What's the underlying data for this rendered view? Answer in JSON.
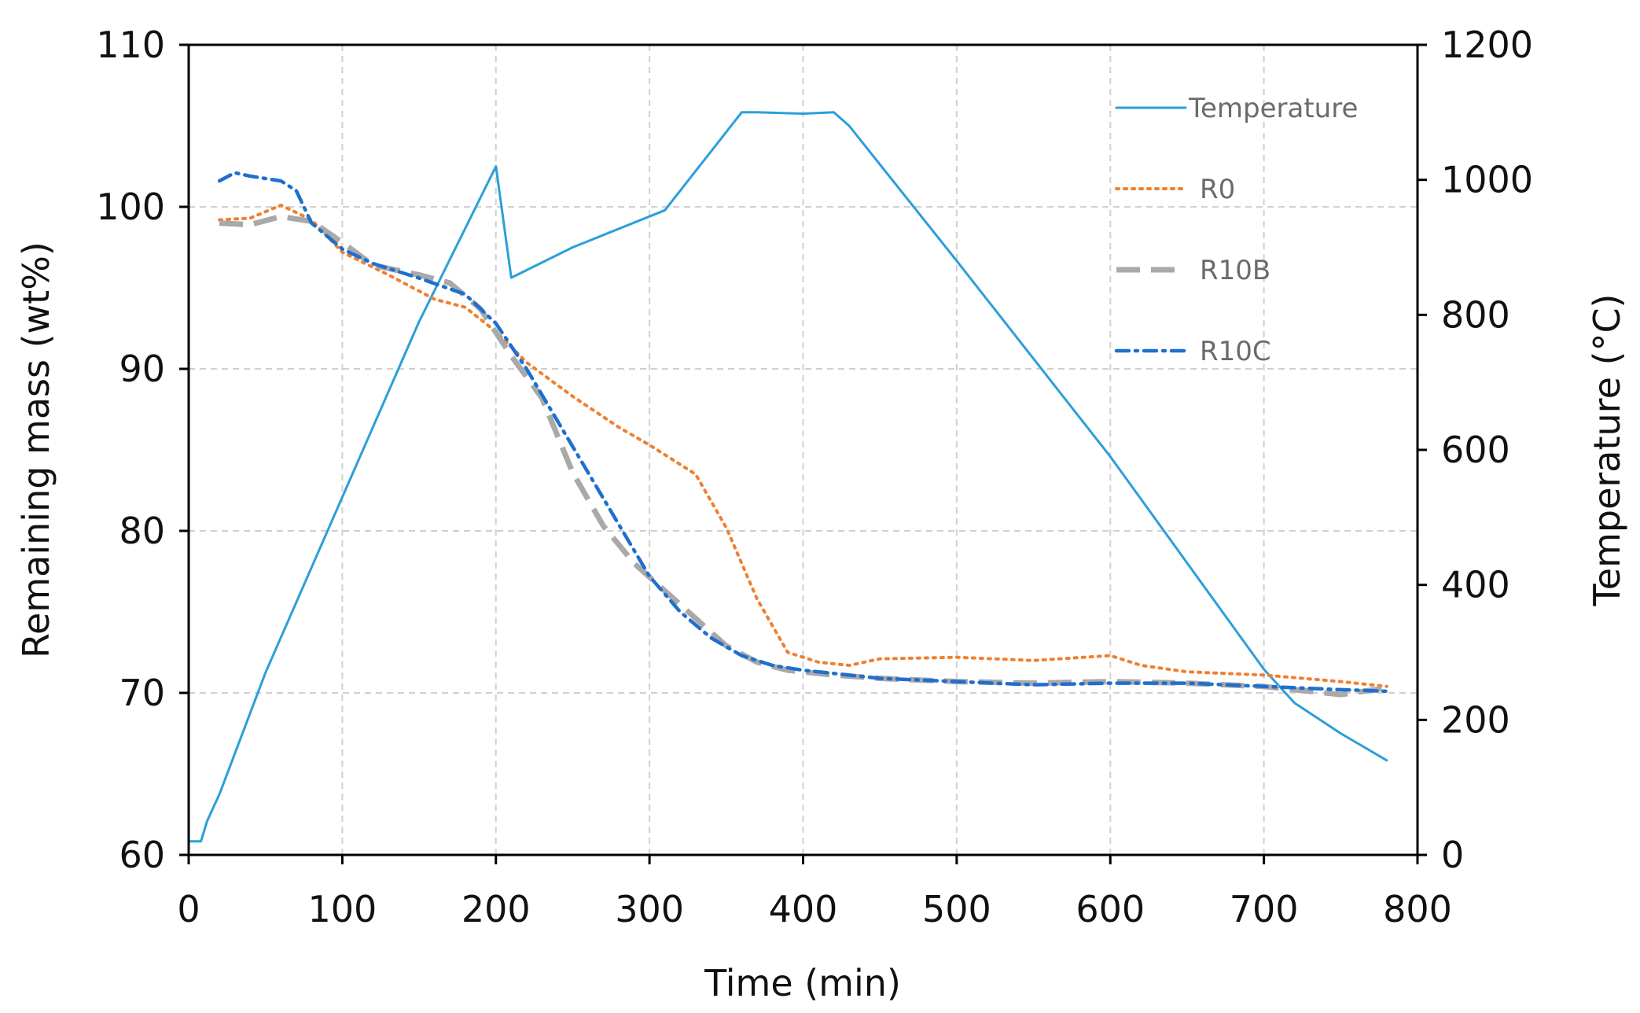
{
  "chart_data": {
    "type": "line",
    "title": "",
    "xlabel": "Time (min)",
    "ylabel": "Remaining mass (wt%)",
    "y2label": "Temperature (°C)",
    "xlim": [
      0,
      800
    ],
    "ylim": [
      60,
      110
    ],
    "y2lim": [
      0,
      1200
    ],
    "xticks": [
      0,
      100,
      200,
      300,
      400,
      500,
      600,
      700,
      800
    ],
    "yticks": [
      60,
      70,
      80,
      90,
      100,
      110
    ],
    "y2ticks": [
      0,
      200,
      400,
      600,
      800,
      1000,
      1200
    ],
    "grid": true,
    "legend_position": "top-right",
    "series": [
      {
        "name": "Temperature",
        "axis": "right",
        "color": "#2b9fd9",
        "style": "solid",
        "x": [
          0,
          8,
          12,
          20,
          50,
          100,
          150,
          200,
          210,
          250,
          310,
          360,
          370,
          400,
          420,
          430,
          500,
          600,
          700,
          720,
          750,
          780
        ],
        "values": [
          20,
          20,
          50,
          90,
          270,
          530,
          790,
          1020,
          855,
          900,
          955,
          1100,
          1100,
          1098,
          1100,
          1080,
          880,
          590,
          275,
          225,
          180,
          140
        ]
      },
      {
        "name": "R0",
        "axis": "left",
        "color": "#f07f2f",
        "style": "dotted",
        "x": [
          20,
          40,
          60,
          80,
          100,
          130,
          160,
          180,
          200,
          220,
          250,
          280,
          300,
          330,
          350,
          370,
          390,
          410,
          430,
          450,
          500,
          550,
          600,
          620,
          650,
          700,
          750,
          780
        ],
        "values": [
          99.2,
          99.3,
          100.1,
          99.2,
          97.2,
          95.8,
          94.3,
          93.8,
          92.3,
          90.4,
          88.3,
          86.4,
          85.3,
          83.5,
          80.2,
          75.8,
          72.5,
          71.9,
          71.7,
          72.1,
          72.2,
          72.0,
          72.3,
          71.7,
          71.3,
          71.1,
          70.7,
          70.4
        ]
      },
      {
        "name": "R10B",
        "axis": "left",
        "color": "#a9a9a9",
        "style": "dashed",
        "x": [
          20,
          40,
          60,
          80,
          100,
          120,
          150,
          170,
          190,
          210,
          230,
          250,
          270,
          290,
          310,
          330,
          350,
          370,
          390,
          420,
          450,
          500,
          550,
          600,
          650,
          700,
          750,
          780
        ],
        "values": [
          99.0,
          98.9,
          99.4,
          99.1,
          97.8,
          96.4,
          95.8,
          95.3,
          93.7,
          90.8,
          88.2,
          83.6,
          80.3,
          78.0,
          76.3,
          74.6,
          72.9,
          71.9,
          71.4,
          71.1,
          70.9,
          70.7,
          70.6,
          70.7,
          70.6,
          70.4,
          69.9,
          70.3
        ]
      },
      {
        "name": "R10C",
        "axis": "left",
        "color": "#1f6fce",
        "style": "dash-dot",
        "x": [
          20,
          30,
          40,
          60,
          70,
          80,
          100,
          120,
          150,
          180,
          200,
          220,
          240,
          260,
          280,
          300,
          320,
          340,
          360,
          380,
          400,
          420,
          450,
          500,
          550,
          600,
          650,
          700,
          750,
          780
        ],
        "values": [
          101.6,
          102.1,
          101.9,
          101.6,
          101.0,
          99.0,
          97.4,
          96.5,
          95.6,
          94.6,
          92.8,
          90.0,
          86.8,
          83.6,
          80.4,
          77.2,
          75.0,
          73.4,
          72.3,
          71.7,
          71.4,
          71.2,
          70.9,
          70.7,
          70.5,
          70.6,
          70.6,
          70.4,
          70.2,
          70.1
        ]
      }
    ]
  }
}
